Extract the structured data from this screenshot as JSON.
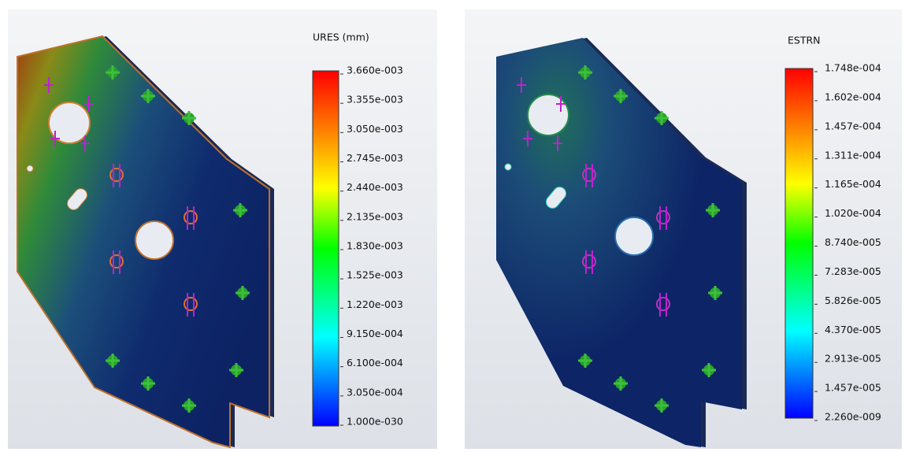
{
  "panels": [
    {
      "title": "URES (mm)",
      "legend_labels": [
        "3.660e-003",
        "3.355e-003",
        "3.050e-003",
        "2.745e-003",
        "2.440e-003",
        "2.135e-003",
        "1.830e-003",
        "1.525e-003",
        "1.220e-003",
        "9.150e-004",
        "6.100e-004",
        "3.050e-004",
        "1.000e-030"
      ]
    },
    {
      "title": "ESTRN",
      "legend_labels": [
        "1.748e-004",
        "1.602e-004",
        "1.457e-004",
        "1.311e-004",
        "1.165e-004",
        "1.020e-004",
        "8.740e-005",
        "7.283e-005",
        "5.826e-005",
        "4.370e-005",
        "2.913e-005",
        "1.457e-005",
        "2.260e-009"
      ]
    }
  ]
}
